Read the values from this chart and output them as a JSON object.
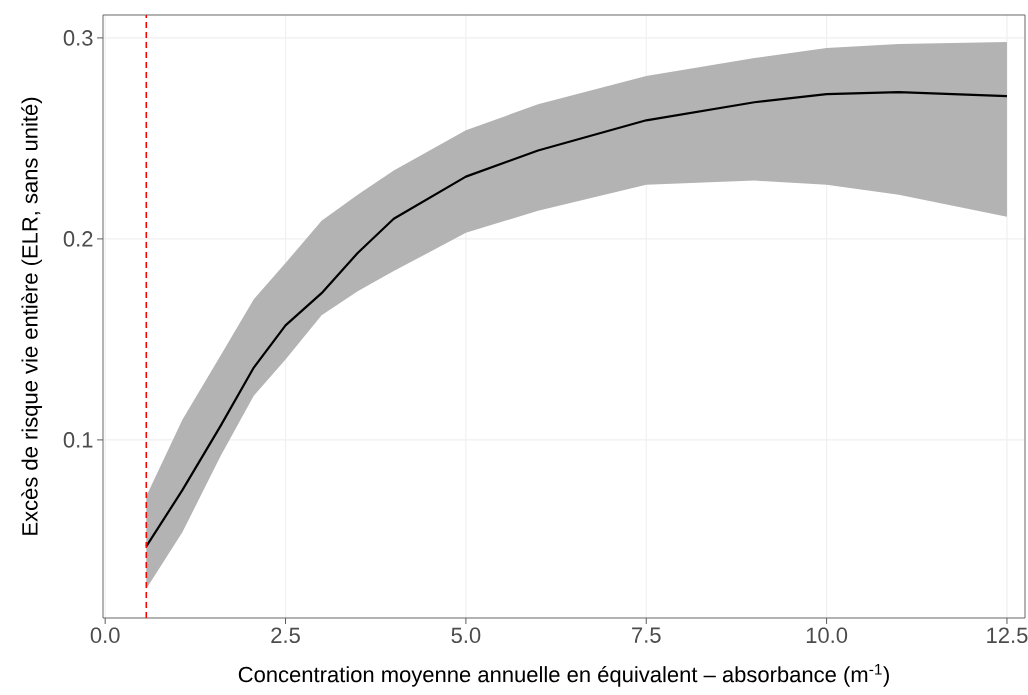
{
  "chart_data": {
    "type": "line",
    "xlabel": "Concentration moyenne annuelle en équivalent – absorbance (m$^{-1}$)",
    "ylabel": "Excès de risque vie entière (ELR, sans unité)",
    "series": [
      {
        "color": "#000000",
        "x": [
          0.57,
          1.07,
          1.6,
          2.06,
          2.5,
          3.0,
          3.5,
          4.0,
          5.0,
          6.0,
          7.5,
          9.0,
          10.0,
          11.0,
          12.5
        ],
        "values": [
          0.047,
          0.075,
          0.107,
          0.136,
          0.157,
          0.173,
          0.193,
          0.21,
          0.231,
          0.244,
          0.259,
          0.268,
          0.272,
          0.273,
          0.271
        ],
        "lower": [
          0.026,
          0.054,
          0.092,
          0.122,
          0.14,
          0.162,
          0.174,
          0.184,
          0.203,
          0.214,
          0.227,
          0.229,
          0.227,
          0.222,
          0.211
        ],
        "upper": [
          0.072,
          0.11,
          0.142,
          0.17,
          0.188,
          0.209,
          0.222,
          0.234,
          0.254,
          0.267,
          0.281,
          0.29,
          0.295,
          0.297,
          0.298
        ]
      }
    ],
    "ref_lines": [
      {
        "axis": "x",
        "value": 0.57,
        "color": "#ff0000",
        "line_style": "dashed"
      }
    ],
    "xlim": [
      -0.03,
      12.75
    ],
    "ylim": [
      0.0114,
      0.3114
    ],
    "xticks": [
      {
        "value": 0,
        "label": "0.0"
      },
      {
        "value": 2.5,
        "label": "2.5"
      },
      {
        "value": 5,
        "label": "5.0"
      },
      {
        "value": 7.5,
        "label": "7.5"
      },
      {
        "value": 10,
        "label": "10.0"
      },
      {
        "value": 12.5,
        "label": "12.5"
      }
    ],
    "yticks": [
      0.1,
      0.2,
      0.3
    ],
    "grid": true,
    "marker": "none",
    "line_style": "solid"
  }
}
